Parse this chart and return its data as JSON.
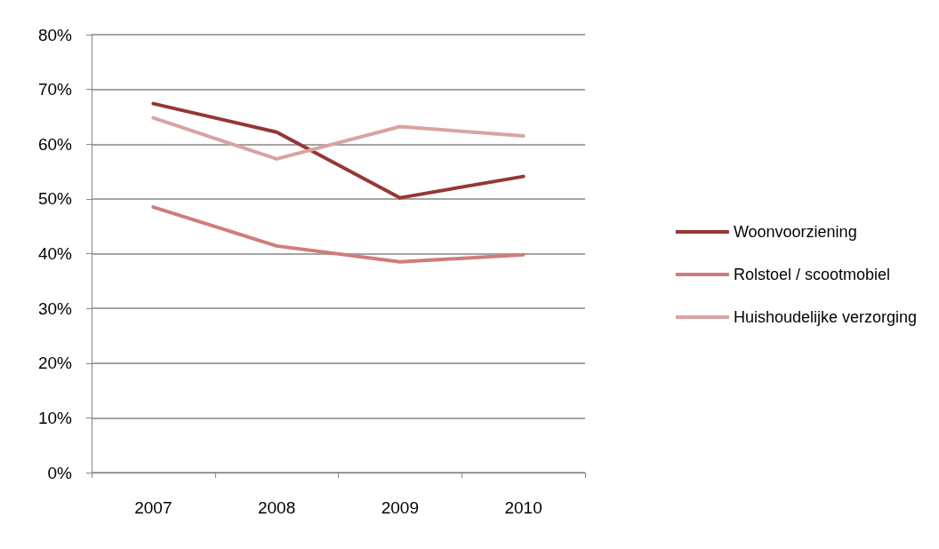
{
  "chart_data": {
    "type": "line",
    "categories": [
      "2007",
      "2008",
      "2009",
      "2010"
    ],
    "series": [
      {
        "name": "Woonvoorziening",
        "color": "#953735",
        "values": [
          67.4,
          62.2,
          50.2,
          54.1
        ]
      },
      {
        "name": "Rolstoel / scootmobiel",
        "color": "#d07c7c",
        "values": [
          48.5,
          41.4,
          38.5,
          39.8
        ]
      },
      {
        "name": "Huishoudelijke verzorging",
        "color": "#d9a3a3",
        "values": [
          64.8,
          57.3,
          63.2,
          61.5
        ]
      }
    ],
    "ylim": [
      0,
      80
    ],
    "yticks": [
      {
        "value": 0,
        "label": "0%"
      },
      {
        "value": 10,
        "label": "10%"
      },
      {
        "value": 20,
        "label": "20%"
      },
      {
        "value": 30,
        "label": "30%"
      },
      {
        "value": 40,
        "label": "40%"
      },
      {
        "value": 50,
        "label": "50%"
      },
      {
        "value": 60,
        "label": "60%"
      },
      {
        "value": 70,
        "label": "70%"
      },
      {
        "value": 80,
        "label": "80%"
      }
    ],
    "grid": "y",
    "legend": "right",
    "marker": "none",
    "line_style": "solid"
  }
}
